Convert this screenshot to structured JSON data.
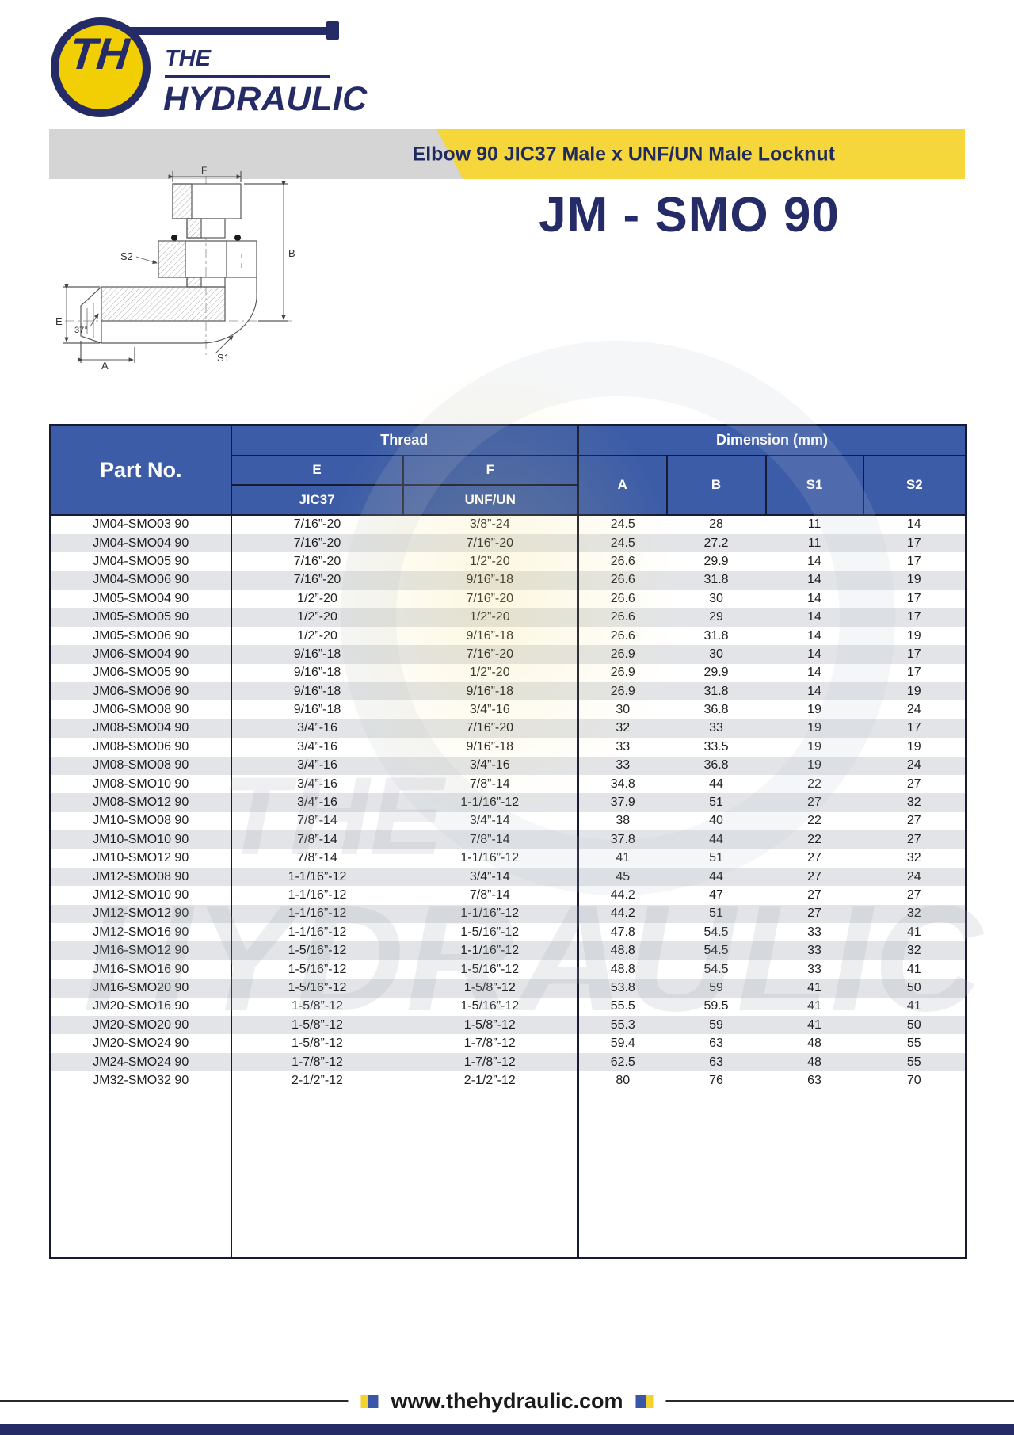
{
  "brand": {
    "monogram": "TH",
    "name_line1": "THE",
    "name_line2": "HYDRAULIC"
  },
  "banner": {
    "title": "Elbow 90 JIC37 Male x UNF/UN Male Locknut"
  },
  "product": {
    "code": "JM - SMO 90"
  },
  "drawing": {
    "labels": {
      "f": "F",
      "b": "B",
      "s2": "S2",
      "e": "E",
      "angle": "37°",
      "a": "A",
      "s1": "S1"
    }
  },
  "table": {
    "headers": {
      "part_no": "Part No.",
      "thread": "Thread",
      "dimension": "Dimension (mm)",
      "e": "E",
      "f": "F",
      "jic": "JIC37",
      "unf": "UNF/UN",
      "a": "A",
      "b": "B",
      "s1": "S1",
      "s2": "S2"
    },
    "col_keys": [
      "part-no",
      "thread-e-jic37",
      "thread-f-unfun",
      "dim-a",
      "dim-b",
      "dim-s1",
      "dim-s2"
    ],
    "rows": [
      [
        "JM04-SMO03 90",
        "7/16”-20",
        "3/8”-24",
        "24.5",
        "28",
        "11",
        "14"
      ],
      [
        "JM04-SMO04 90",
        "7/16”-20",
        "7/16”-20",
        "24.5",
        "27.2",
        "11",
        "17"
      ],
      [
        "JM04-SMO05 90",
        "7/16”-20",
        "1/2”-20",
        "26.6",
        "29.9",
        "14",
        "17"
      ],
      [
        "JM04-SMO06 90",
        "7/16”-20",
        "9/16”-18",
        "26.6",
        "31.8",
        "14",
        "19"
      ],
      [
        "JM05-SMO04 90",
        "1/2”-20",
        "7/16”-20",
        "26.6",
        "30",
        "14",
        "17"
      ],
      [
        "JM05-SMO05 90",
        "1/2”-20",
        "1/2”-20",
        "26.6",
        "29",
        "14",
        "17"
      ],
      [
        "JM05-SMO06 90",
        "1/2”-20",
        "9/16”-18",
        "26.6",
        "31.8",
        "14",
        "19"
      ],
      [
        "JM06-SMO04 90",
        "9/16”-18",
        "7/16”-20",
        "26.9",
        "30",
        "14",
        "17"
      ],
      [
        "JM06-SMO05 90",
        "9/16”-18",
        "1/2”-20",
        "26.9",
        "29.9",
        "14",
        "17"
      ],
      [
        "JM06-SMO06 90",
        "9/16”-18",
        "9/16”-18",
        "26.9",
        "31.8",
        "14",
        "19"
      ],
      [
        "JM06-SMO08 90",
        "9/16”-18",
        "3/4”-16",
        "30",
        "36.8",
        "19",
        "24"
      ],
      [
        "JM08-SMO04 90",
        "3/4”-16",
        "7/16”-20",
        "32",
        "33",
        "19",
        "17"
      ],
      [
        "JM08-SMO06 90",
        "3/4”-16",
        "9/16”-18",
        "33",
        "33.5",
        "19",
        "19"
      ],
      [
        "JM08-SMO08 90",
        "3/4”-16",
        "3/4”-16",
        "33",
        "36.8",
        "19",
        "24"
      ],
      [
        "JM08-SMO10 90",
        "3/4”-16",
        "7/8”-14",
        "34.8",
        "44",
        "22",
        "27"
      ],
      [
        "JM08-SMO12 90",
        "3/4”-16",
        "1-1/16”-12",
        "37.9",
        "51",
        "27",
        "32"
      ],
      [
        "JM10-SMO08 90",
        "7/8”-14",
        "3/4”-14",
        "38",
        "40",
        "22",
        "27"
      ],
      [
        "JM10-SMO10 90",
        "7/8”-14",
        "7/8”-14",
        "37.8",
        "44",
        "22",
        "27"
      ],
      [
        "JM10-SMO12 90",
        "7/8”-14",
        "1-1/16”-12",
        "41",
        "51",
        "27",
        "32"
      ],
      [
        "JM12-SMO08 90",
        "1-1/16”-12",
        "3/4”-14",
        "45",
        "44",
        "27",
        "24"
      ],
      [
        "JM12-SMO10 90",
        "1-1/16”-12",
        "7/8”-14",
        "44.2",
        "47",
        "27",
        "27"
      ],
      [
        "JM12-SMO12 90",
        "1-1/16”-12",
        "1-1/16”-12",
        "44.2",
        "51",
        "27",
        "32"
      ],
      [
        "JM12-SMO16 90",
        "1-1/16”-12",
        "1-5/16”-12",
        "47.8",
        "54.5",
        "33",
        "41"
      ],
      [
        "JM16-SMO12 90",
        "1-5/16”-12",
        "1-1/16”-12",
        "48.8",
        "54.5",
        "33",
        "32"
      ],
      [
        "JM16-SMO16 90",
        "1-5/16”-12",
        "1-5/16”-12",
        "48.8",
        "54.5",
        "33",
        "41"
      ],
      [
        "JM16-SMO20 90",
        "1-5/16”-12",
        "1-5/8”-12",
        "53.8",
        "59",
        "41",
        "50"
      ],
      [
        "JM20-SMO16 90",
        "1-5/8”-12",
        "1-5/16”-12",
        "55.5",
        "59.5",
        "41",
        "41"
      ],
      [
        "JM20-SMO20 90",
        "1-5/8”-12",
        "1-5/8”-12",
        "55.3",
        "59",
        "41",
        "50"
      ],
      [
        "JM20-SMO24 90",
        "1-5/8”-12",
        "1-7/8”-12",
        "59.4",
        "63",
        "48",
        "55"
      ],
      [
        "JM24-SMO24 90",
        "1-7/8”-12",
        "1-7/8”-12",
        "62.5",
        "63",
        "48",
        "55"
      ],
      [
        "JM32-SMO32 90",
        "2-1/2”-12",
        "2-1/2”-12",
        "80",
        "76",
        "63",
        "70"
      ]
    ]
  },
  "footer": {
    "website": "www.thehydraulic.com"
  },
  "colors": {
    "navy": "#242b66",
    "header_blue": "#3c5ca8",
    "band_yellow": "#f5d73b",
    "band_gray": "#d5d5d5",
    "row_alt": "#e0e2e6",
    "logo_yellow": "#f2cf05"
  }
}
